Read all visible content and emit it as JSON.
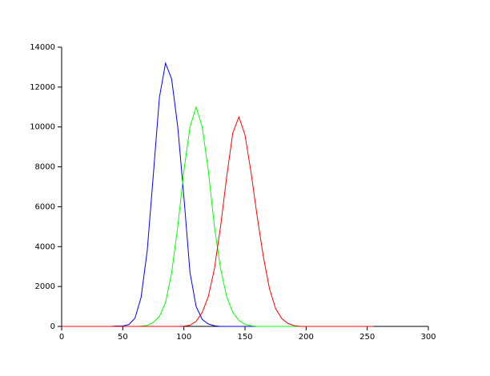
{
  "chart_data": {
    "type": "line",
    "x": [
      0,
      5,
      10,
      15,
      20,
      25,
      30,
      35,
      40,
      45,
      50,
      55,
      60,
      65,
      70,
      75,
      80,
      85,
      90,
      95,
      100,
      105,
      110,
      115,
      120,
      125,
      130,
      135,
      140,
      145,
      150,
      155,
      160,
      165,
      170,
      175,
      180,
      185,
      190,
      195,
      200,
      205,
      210,
      215,
      220,
      225,
      230,
      235,
      240,
      245,
      250,
      255
    ],
    "series": [
      {
        "color": "#0000ff",
        "values": [
          0,
          0,
          0,
          0,
          0,
          0,
          0,
          0,
          0,
          20,
          20,
          90,
          410,
          1460,
          3790,
          7600,
          11490,
          13200,
          12400,
          10000,
          6500,
          2700,
          1000,
          350,
          120,
          30,
          0,
          0,
          0,
          0,
          0,
          0,
          0,
          0,
          0,
          0,
          0,
          0,
          0,
          0,
          0,
          0,
          0,
          0,
          0,
          0,
          0,
          0,
          0,
          0,
          0,
          0
        ]
      },
      {
        "color": "#00ff00",
        "values": [
          0,
          0,
          0,
          0,
          0,
          0,
          0,
          0,
          0,
          0,
          0,
          0,
          0,
          10,
          50,
          200,
          500,
          1200,
          2700,
          5000,
          7800,
          10000,
          11000,
          10000,
          7800,
          5000,
          2900,
          1500,
          700,
          300,
          100,
          30,
          0,
          0,
          0,
          0,
          0,
          0,
          0,
          0,
          0,
          0,
          0,
          0,
          0,
          0,
          0,
          0,
          0,
          0,
          0,
          0
        ]
      },
      {
        "color": "#ff0000",
        "values": [
          0,
          0,
          0,
          0,
          0,
          0,
          0,
          0,
          0,
          0,
          0,
          0,
          0,
          0,
          0,
          0,
          0,
          0,
          0,
          0,
          10,
          60,
          250,
          700,
          1500,
          2900,
          5000,
          7500,
          9700,
          10500,
          9600,
          7700,
          5500,
          3500,
          1900,
          900,
          400,
          150,
          40,
          0,
          0,
          0,
          0,
          0,
          0,
          0,
          0,
          0,
          0,
          0,
          0,
          0
        ]
      }
    ],
    "xlim": [
      0,
      300
    ],
    "xticks": [
      0,
      50,
      100,
      150,
      200,
      250,
      300
    ],
    "ylim": [
      0,
      14000
    ],
    "yticks": [
      0,
      2000,
      4000,
      6000,
      8000,
      10000,
      12000,
      14000
    ]
  }
}
